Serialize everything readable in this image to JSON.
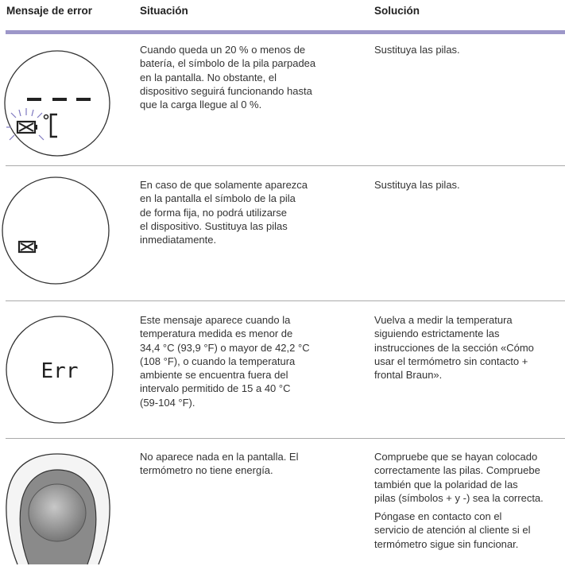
{
  "header": {
    "error": "Mensaje de error",
    "situation": "Situación",
    "solution": "Solución"
  },
  "rows": [
    {
      "situation": [
        "Cuando queda un 20 % o menos de",
        "batería, el símbolo de la pila parpadea",
        "en la pantalla. No obstante, el",
        "dispositivo seguirá funcionando hasta",
        "que la carga llegue al 0 %."
      ],
      "solution": [
        [
          "Sustituya las pilas."
        ]
      ]
    },
    {
      "situation": [
        "En caso de que solamente aparezca",
        "en la pantalla el símbolo de la pila",
        "de forma fija, no podrá utilizarse",
        "el dispositivo. Sustituya las pilas",
        "inmediatamente."
      ],
      "solution": [
        [
          "Sustituya las pilas."
        ]
      ]
    },
    {
      "display": "Err",
      "situation": [
        "Este mensaje aparece cuando la",
        "temperatura medida es menor de",
        "34,4 °C (93,9 °F) o mayor de 42,2 °C",
        "(108 °F), o cuando la temperatura",
        "ambiente se encuentra fuera del",
        "intervalo permitido de 15 a 40 °C",
        "(59-104 °F)."
      ],
      "solution": [
        [
          "Vuelva a medir la temperatura",
          "siguiendo estrictamente las",
          "instrucciones de la sección «Cómo",
          "usar el termómetro sin contacto +",
          "frontal Braun»."
        ]
      ]
    },
    {
      "situation": [
        "No aparece nada en la pantalla. El",
        "termómetro no tiene energía."
      ],
      "solution": [
        [
          "Compruebe que se hayan colocado",
          "correctamente las pilas. Compruebe",
          "también que la polaridad de las",
          "pilas (símbolos + y -) sea la correcta."
        ],
        [
          "Póngase en contacto con el",
          "servicio de atención al cliente si el",
          "termómetro sigue sin funcionar."
        ]
      ]
    }
  ]
}
